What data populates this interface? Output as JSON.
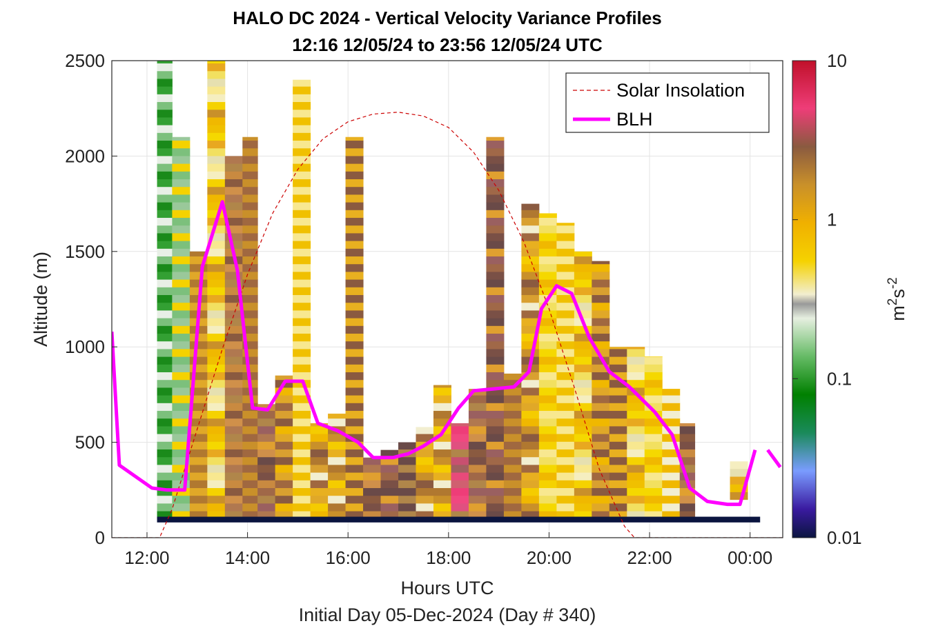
{
  "chart_data": {
    "type": "heatmap",
    "title": "HALO DC 2024 - Vertical Velocity Variance Profiles",
    "subtitle": "12:16 12/05/24 to 23:56 12/05/24  UTC",
    "xlabel": "Hours UTC",
    "xlabel2": "Initial Day 05-Dec-2024 (Day # 340)",
    "ylabel": "Altitude (m)",
    "colorbar_label": "m²s⁻²",
    "colorbar_label_base": "m",
    "colorbar_label_exp1": "2",
    "colorbar_label_mid": "s",
    "colorbar_label_exp2": "-2",
    "xlim_hours": [
      11.3,
      24.65
    ],
    "ylim": [
      0,
      2500
    ],
    "x_ticks": [
      {
        "value": 12,
        "label": "12:00"
      },
      {
        "value": 14,
        "label": "14:00"
      },
      {
        "value": 16,
        "label": "16:00"
      },
      {
        "value": 18,
        "label": "18:00"
      },
      {
        "value": 20,
        "label": "20:00"
      },
      {
        "value": 22,
        "label": "22:00"
      },
      {
        "value": 24,
        "label": "00:00"
      }
    ],
    "y_ticks": [
      {
        "value": 0,
        "label": "0"
      },
      {
        "value": 500,
        "label": "500"
      },
      {
        "value": 1000,
        "label": "1000"
      },
      {
        "value": 1500,
        "label": "1500"
      },
      {
        "value": 2000,
        "label": "2000"
      },
      {
        "value": 2500,
        "label": "2500"
      }
    ],
    "colorbar_ticks": [
      {
        "value": 0.01,
        "label": "0.01"
      },
      {
        "value": 0.1,
        "label": "0.1"
      },
      {
        "value": 1,
        "label": "1"
      },
      {
        "value": 10,
        "label": "10"
      }
    ],
    "colorbar_range": [
      0.01,
      10
    ],
    "colorbar_scale": "log",
    "grid": true,
    "legend_position": "top-right",
    "series": [
      {
        "name": "Solar Insolation",
        "style": "dashed",
        "color": "#cc0000",
        "x": [
          11.3,
          12.25,
          12.5,
          13.0,
          13.5,
          14.0,
          14.5,
          15.0,
          15.5,
          16.0,
          16.5,
          17.0,
          17.5,
          18.0,
          18.5,
          19.0,
          19.5,
          20.0,
          20.5,
          21.0,
          21.5,
          21.7,
          24.65
        ],
        "y": [
          0,
          0,
          150,
          570,
          990,
          1380,
          1700,
          1930,
          2090,
          2180,
          2220,
          2230,
          2210,
          2150,
          2020,
          1820,
          1550,
          1200,
          790,
          360,
          60,
          0,
          0
        ]
      },
      {
        "name": "BLH",
        "style": "solid",
        "color": "#ff00ff",
        "x": [
          11.3,
          11.45,
          12.1,
          12.4,
          12.75,
          13.1,
          13.5,
          13.8,
          14.1,
          14.4,
          14.75,
          15.1,
          15.4,
          15.8,
          16.2,
          16.5,
          16.9,
          17.2,
          17.5,
          17.85,
          18.2,
          18.5,
          18.9,
          19.3,
          19.6,
          19.85,
          20.15,
          20.45,
          20.8,
          21.2,
          21.6,
          22.1,
          22.45,
          22.8,
          23.15,
          23.55,
          23.8,
          24.1,
          24.15,
          24.35,
          24.6
        ],
        "y": [
          1080,
          380,
          260,
          250,
          250,
          1420,
          1760,
          1400,
          680,
          670,
          820,
          820,
          600,
          560,
          500,
          420,
          420,
          440,
          480,
          540,
          680,
          770,
          780,
          790,
          870,
          1200,
          1320,
          1280,
          1050,
          870,
          790,
          660,
          540,
          260,
          190,
          175,
          175,
          460,
          null,
          460,
          370
        ]
      }
    ],
    "heatmap_columns": [
      {
        "x0": 12.2,
        "x1": 12.5,
        "bottom": 100,
        "top": 2500,
        "base": "g"
      },
      {
        "x0": 12.5,
        "x1": 12.85,
        "bottom": 100,
        "top": 2100,
        "base": "g"
      },
      {
        "x0": 12.85,
        "x1": 13.2,
        "bottom": 100,
        "top": 1500,
        "base": "o"
      },
      {
        "x0": 13.2,
        "x1": 13.55,
        "bottom": 100,
        "top": 2500,
        "base": "y"
      },
      {
        "x0": 13.55,
        "x1": 13.9,
        "bottom": 100,
        "top": 2000,
        "base": "b"
      },
      {
        "x0": 13.9,
        "x1": 14.2,
        "bottom": 100,
        "top": 2100,
        "base": "o"
      },
      {
        "x0": 14.2,
        "x1": 14.55,
        "bottom": 100,
        "top": 700,
        "base": "b"
      },
      {
        "x0": 14.55,
        "x1": 14.9,
        "bottom": 100,
        "top": 850,
        "base": "o"
      },
      {
        "x0": 14.9,
        "x1": 15.25,
        "bottom": 100,
        "top": 2400,
        "base": "y"
      },
      {
        "x0": 15.25,
        "x1": 15.6,
        "bottom": 100,
        "top": 600,
        "base": "o"
      },
      {
        "x0": 15.6,
        "x1": 15.95,
        "bottom": 100,
        "top": 650,
        "base": "o"
      },
      {
        "x0": 15.95,
        "x1": 16.3,
        "bottom": 100,
        "top": 2100,
        "base": "o"
      },
      {
        "x0": 16.3,
        "x1": 16.65,
        "bottom": 100,
        "top": 420,
        "base": "b"
      },
      {
        "x0": 16.65,
        "x1": 17.0,
        "bottom": 100,
        "top": 460,
        "base": "b"
      },
      {
        "x0": 17.0,
        "x1": 17.35,
        "bottom": 100,
        "top": 500,
        "base": "b"
      },
      {
        "x0": 17.35,
        "x1": 17.7,
        "bottom": 100,
        "top": 580,
        "base": "o"
      },
      {
        "x0": 17.7,
        "x1": 18.05,
        "bottom": 100,
        "top": 800,
        "base": "o"
      },
      {
        "x0": 18.05,
        "x1": 18.4,
        "bottom": 100,
        "top": 600,
        "base": "p"
      },
      {
        "x0": 18.4,
        "x1": 18.75,
        "bottom": 100,
        "top": 780,
        "base": "b"
      },
      {
        "x0": 18.75,
        "x1": 19.1,
        "bottom": 100,
        "top": 2100,
        "base": "b"
      },
      {
        "x0": 19.1,
        "x1": 19.45,
        "bottom": 100,
        "top": 860,
        "base": "o"
      },
      {
        "x0": 19.45,
        "x1": 19.8,
        "bottom": 100,
        "top": 1750,
        "base": "o"
      },
      {
        "x0": 19.8,
        "x1": 20.15,
        "bottom": 100,
        "top": 1700,
        "base": "y"
      },
      {
        "x0": 20.15,
        "x1": 20.5,
        "bottom": 100,
        "top": 1650,
        "base": "y"
      },
      {
        "x0": 20.5,
        "x1": 20.85,
        "bottom": 100,
        "top": 1500,
        "base": "y"
      },
      {
        "x0": 20.85,
        "x1": 21.2,
        "bottom": 100,
        "top": 1450,
        "base": "o"
      },
      {
        "x0": 21.2,
        "x1": 21.55,
        "bottom": 100,
        "top": 1000,
        "base": "o"
      },
      {
        "x0": 21.55,
        "x1": 21.9,
        "bottom": 100,
        "top": 1000,
        "base": "y"
      },
      {
        "x0": 21.9,
        "x1": 22.25,
        "bottom": 100,
        "top": 950,
        "base": "y"
      },
      {
        "x0": 22.25,
        "x1": 22.6,
        "bottom": 100,
        "top": 780,
        "base": "o"
      },
      {
        "x0": 22.6,
        "x1": 22.9,
        "bottom": 100,
        "top": 600,
        "base": "b"
      },
      {
        "x0": 23.6,
        "x1": 23.95,
        "bottom": 200,
        "top": 400,
        "base": "y"
      }
    ],
    "colors": {
      "blh": "#ff00ff",
      "solar": "#cc0000",
      "navy_base": "#0b1540"
    }
  }
}
